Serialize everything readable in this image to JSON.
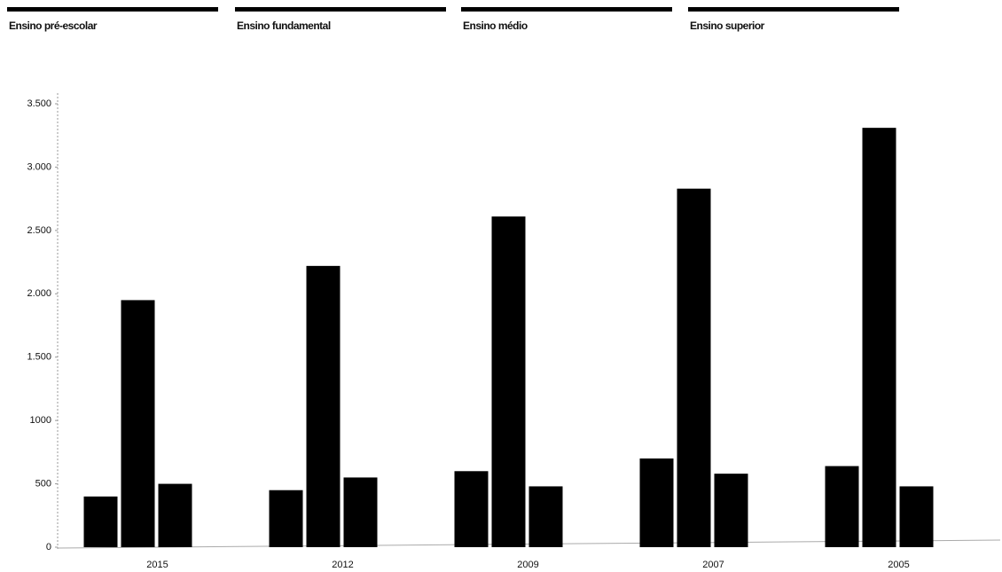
{
  "chart_data": {
    "type": "bar",
    "categories": [
      "2015",
      "2012",
      "2009",
      "2007",
      "2005"
    ],
    "series": [
      {
        "name": "Ensino pré-escolar",
        "color": "#000000",
        "values": [
          400,
          450,
          600,
          700,
          640
        ]
      },
      {
        "name": "Ensino fundamental",
        "color": "#000000",
        "values": [
          1950,
          2220,
          2610,
          2830,
          3310
        ]
      },
      {
        "name": "Ensino médio",
        "color": "#000000",
        "values": [
          500,
          550,
          480,
          580,
          480
        ]
      },
      {
        "name": "Ensino superior",
        "color": "#000000",
        "values": [
          null,
          null,
          null,
          null,
          null
        ]
      }
    ],
    "ylim": [
      0,
      3500
    ],
    "yticks": [
      0,
      500,
      1000,
      {
        "value": 1500,
        "label": "1.500"
      },
      {
        "value": 2000,
        "label": "2.000"
      },
      {
        "value": 2500,
        "label": "2.500"
      },
      {
        "value": 3000,
        "label": "3.000"
      },
      {
        "value": 3500,
        "label": "3.500"
      }
    ],
    "grid": false,
    "legend": "top"
  }
}
